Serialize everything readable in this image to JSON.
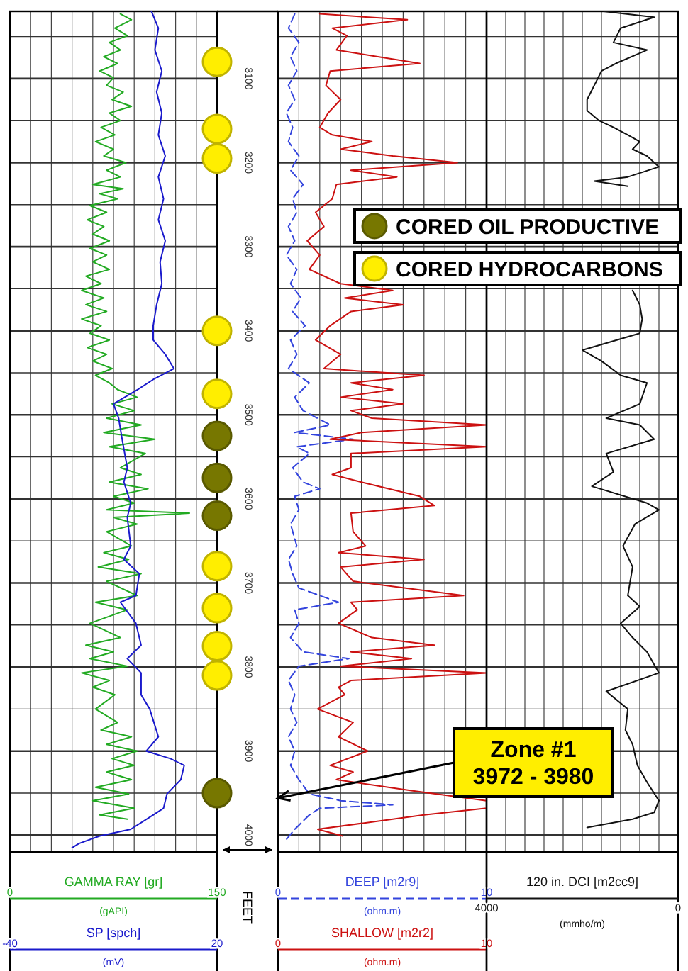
{
  "chart_data": [
    {
      "type": "line",
      "xlabel": "GAMMA RAY [gr]",
      "x2label": "SP [spch]",
      "ylabel": "FEET",
      "xlim": [
        0,
        150
      ],
      "xticks": [
        0,
        {
          "value": 15,
          "label": null
        },
        {
          "value": 30,
          "label": null
        },
        {
          "value": 45,
          "label": null
        },
        {
          "value": 60,
          "label": null
        },
        {
          "value": 75,
          "label": null
        },
        {
          "value": 90,
          "label": null
        },
        {
          "value": 105,
          "label": null
        },
        {
          "value": 120,
          "label": null
        },
        {
          "value": 135,
          "label": null
        },
        150
      ],
      "x2lim": [
        -40,
        20
      ],
      "x2ticks": [
        -40,
        20
      ],
      "ylim": [
        4020,
        3020
      ],
      "yticks": [
        {
          "value": 3050,
          "label": null
        },
        3100,
        {
          "value": 3150,
          "label": null
        },
        3200,
        {
          "value": 3250,
          "label": null
        },
        3300,
        {
          "value": 3350,
          "label": null
        },
        3400,
        {
          "value": 3450,
          "label": null
        },
        3500,
        {
          "value": 3550,
          "label": null
        },
        3600,
        {
          "value": 3650,
          "label": null
        },
        3700,
        {
          "value": 3750,
          "label": null
        },
        3800,
        {
          "value": 3850,
          "label": null
        },
        3900,
        {
          "value": 3950,
          "label": null
        },
        4000
      ],
      "grid": true,
      "legend": "right",
      "annotations": [
        "(gAPI)",
        "(mV)"
      ],
      "series": [
        {
          "type": "line",
          "color": "#22aa22",
          "line_style": "solid",
          "x": [
            80,
            88,
            76,
            85,
            72,
            80,
            68,
            78,
            65,
            75,
            70,
            82,
            74,
            88,
            72,
            80,
            66,
            76,
            62,
            75,
            68,
            84,
            70,
            80,
            60,
            82,
            65,
            78,
            58,
            70,
            56,
            68,
            60,
            72,
            58,
            70,
            60,
            72,
            55,
            66,
            52,
            68,
            55,
            70,
            52,
            66,
            58,
            72,
            56,
            70,
            60,
            74,
            62,
            72,
            78,
            92,
            74,
            90,
            70,
            95,
            68,
            105,
            72,
            98,
            80,
            95,
            72,
            100,
            75,
            90,
            70,
            130,
            75,
            92,
            70,
            88,
            68,
            86,
            64,
            95,
            70,
            92,
            62,
            85,
            58,
            80,
            55,
            75,
            58,
            85,
            52,
            72,
            60,
            76,
            62,
            78,
            66,
            88,
            70,
            92,
            74,
            90,
            70,
            88,
            62,
            86,
            60,
            90,
            65,
            85
          ],
          "values": [
            3023,
            3030,
            3040,
            3049,
            3057,
            3066,
            3074,
            3082,
            3091,
            3099,
            3108,
            3116,
            3125,
            3133,
            3141,
            3150,
            3158,
            3167,
            3175,
            3184,
            3192,
            3200,
            3209,
            3217,
            3226,
            3231,
            3237,
            3243,
            3251,
            3259,
            3268,
            3276,
            3285,
            3293,
            3302,
            3310,
            3318,
            3327,
            3335,
            3344,
            3352,
            3361,
            3369,
            3377,
            3386,
            3394,
            3403,
            3411,
            3420,
            3428,
            3436,
            3445,
            3453,
            3462,
            3470,
            3479,
            3487,
            3495,
            3504,
            3512,
            3521,
            3529,
            3538,
            3546,
            3563,
            3571,
            3580,
            3588,
            3597,
            3605,
            3613,
            3617,
            3622,
            3630,
            3639,
            3656,
            3664,
            3672,
            3681,
            3689,
            3698,
            3715,
            3723,
            3732,
            3748,
            3765,
            3774,
            3782,
            3790,
            3799,
            3807,
            3816,
            3824,
            3833,
            3850,
            3866,
            3875,
            3883,
            3892,
            3900,
            3909,
            3917,
            3925,
            3934,
            3943,
            3951,
            3959,
            3968,
            3976,
            3981
          ]
        },
        {
          "type": "line",
          "color": "#1a1acc",
          "line_style": "solid",
          "axis": "x2",
          "x": [
            1,
            3,
            2,
            4,
            2.5,
            4,
            3,
            5,
            3,
            4.5,
            3,
            5,
            3.5,
            4,
            2.5,
            1.5,
            1.5,
            5,
            7.5,
            1.5,
            -3,
            -10,
            -8.5,
            -7.5,
            -6,
            -7,
            -5,
            -6,
            -5,
            -7,
            -2.5,
            -3.5,
            -8,
            -3.5,
            -2,
            -6,
            -2,
            -2,
            0.5,
            3,
            -0.5,
            6.5,
            10.5,
            9.5,
            5.5,
            4.5,
            1.5,
            -5,
            -14,
            -20,
            -22
          ],
          "values": [
            3020,
            3040,
            3066,
            3091,
            3116,
            3141,
            3167,
            3192,
            3217,
            3243,
            3268,
            3293,
            3318,
            3344,
            3369,
            3394,
            3411,
            3428,
            3445,
            3458,
            3470,
            3487,
            3504,
            3529,
            3563,
            3580,
            3605,
            3622,
            3656,
            3672,
            3689,
            3715,
            3723,
            3748,
            3774,
            3790,
            3807,
            3833,
            3850,
            3883,
            3900,
            3909,
            3917,
            3934,
            3951,
            3968,
            3976,
            3993,
            4001,
            4010,
            4015
          ]
        },
        {
          "type": "scatter",
          "name": "CORED OIL PRODUCTIVE",
          "color": "#777700",
          "marker": "circle",
          "x": [
            150,
            150,
            150,
            150
          ],
          "values": [
            3525,
            3575,
            3620,
            3950
          ]
        },
        {
          "type": "scatter",
          "name": "CORED HYDROCARBONS",
          "color": "#ffee00",
          "marker": "circle",
          "x": [
            150,
            150,
            150,
            150,
            150,
            150,
            150,
            150,
            150
          ],
          "values": [
            3080,
            3160,
            3195,
            3400,
            3475,
            3680,
            3730,
            3775,
            3810
          ]
        }
      ]
    },
    {
      "type": "line",
      "xlabel": "DEEP [m2r9]",
      "x2label": "SHALLOW [m2r2]",
      "xlim": [
        0,
        10
      ],
      "xticks": [
        0,
        {
          "value": 1,
          "label": null
        },
        {
          "value": 2,
          "label": null
        },
        {
          "value": 3,
          "label": null
        },
        {
          "value": 4,
          "label": null
        },
        {
          "value": 5,
          "label": null
        },
        {
          "value": 6,
          "label": null
        },
        {
          "value": 7,
          "label": null
        },
        {
          "value": 8,
          "label": null
        },
        {
          "value": 9,
          "label": null
        },
        10
      ],
      "x2lim": [
        0,
        10
      ],
      "x2ticks": [
        0,
        10
      ],
      "ylim": [
        4020,
        3020
      ],
      "yticks": [
        {
          "value": 3050,
          "label": null
        },
        3100,
        {
          "value": 3150,
          "label": null
        },
        3200,
        {
          "value": 3250,
          "label": null
        },
        3300,
        {
          "value": 3350,
          "label": null
        },
        3400,
        {
          "value": 3450,
          "label": null
        },
        3500,
        {
          "value": 3550,
          "label": null
        },
        3600,
        {
          "value": 3650,
          "label": null
        },
        3700,
        {
          "value": 3750,
          "label": null
        },
        3800,
        {
          "value": 3850,
          "label": null
        },
        3900,
        {
          "value": 3950,
          "label": null
        },
        4000
      ],
      "grid": true,
      "tick_labels": "x",
      "annotations": [
        "(ohm.m)",
        "(ohm.m)",
        "Zone #1\n3972 - 3980"
      ],
      "series": [
        {
          "type": "line",
          "color": "#3344dd",
          "line_style": "dashed",
          "x": [
            0.8,
            0.5,
            1.0,
            0.6,
            0.9,
            0.5,
            0.8,
            0.4,
            0.7,
            0.5,
            1.0,
            0.6,
            1.2,
            0.7,
            0.9,
            0.5,
            0.8,
            0.4,
            0.9,
            0.6,
            1.1,
            0.7,
            1.3,
            0.6,
            0.9,
            0.5,
            1.5,
            0.8,
            1.2,
            2.5,
            0.8,
            3.6,
            0.9,
            1.5,
            0.7,
            1.2,
            2.0,
            0.8,
            1.0,
            0.6,
            0.9,
            0.5,
            0.7,
            1.0,
            2.9,
            0.8,
            1.0,
            0.6,
            1.2,
            3.4,
            1.0,
            0.5,
            0.8,
            0.6,
            0.9,
            0.5,
            0.8,
            0.6,
            1.0,
            1.5,
            3.0,
            5.5,
            2.0,
            1.5,
            0.8,
            0.4
          ],
          "values": [
            3023,
            3040,
            3057,
            3074,
            3091,
            3108,
            3125,
            3141,
            3158,
            3175,
            3192,
            3209,
            3226,
            3243,
            3259,
            3276,
            3293,
            3310,
            3327,
            3344,
            3361,
            3377,
            3394,
            3411,
            3428,
            3445,
            3462,
            3479,
            3495,
            3512,
            3521,
            3529,
            3538,
            3546,
            3563,
            3580,
            3588,
            3597,
            3613,
            3630,
            3656,
            3672,
            3689,
            3706,
            3723,
            3732,
            3748,
            3765,
            3782,
            3790,
            3799,
            3816,
            3833,
            3850,
            3866,
            3883,
            3900,
            3917,
            3934,
            3951,
            3959,
            3964,
            3968,
            3976,
            3993,
            4005
          ]
        },
        {
          "type": "line",
          "color": "#cc1111",
          "line_style": "solid",
          "axis": "x2",
          "x": [
            2,
            6.2,
            2.6,
            3.3,
            2.8,
            6.8,
            2.5,
            2.3,
            3.0,
            2.4,
            2.0,
            2.6,
            4.5,
            3.0,
            5.5,
            8.6,
            3.5,
            5.7,
            2.8,
            2.6,
            1.8,
            2.2,
            1.4,
            2.0,
            1.5,
            3.0,
            5.5,
            3.2,
            6.0,
            3.5,
            2.5,
            1.8,
            3.0,
            2.2,
            7.0,
            3.5,
            5.5,
            3.0,
            6.0,
            3.5,
            4.5,
            10,
            4.0,
            2.5,
            10,
            3.5,
            3.5,
            2.6,
            4.0,
            6.8,
            7.5,
            3.5,
            3.6,
            4.2,
            2.9,
            7.0,
            3.0,
            3.6,
            8.9,
            3.5,
            3.8,
            2.9,
            4.5,
            7.5,
            3.5,
            6.4,
            3.0,
            10,
            3.5,
            2.9,
            3.2,
            1.9,
            3.6,
            2.9,
            4.3,
            2.5,
            3.6,
            2.8,
            6.4,
            10,
            10,
            7.0,
            1.9,
            3.1
          ],
          "values": [
            3023,
            3030,
            3040,
            3049,
            3066,
            3082,
            3091,
            3108,
            3125,
            3141,
            3158,
            3167,
            3175,
            3184,
            3192,
            3200,
            3209,
            3217,
            3226,
            3243,
            3259,
            3276,
            3293,
            3310,
            3327,
            3344,
            3352,
            3361,
            3369,
            3377,
            3394,
            3411,
            3428,
            3445,
            3453,
            3462,
            3470,
            3479,
            3487,
            3495,
            3504,
            3512,
            3521,
            3529,
            3538,
            3546,
            3563,
            3571,
            3580,
            3597,
            3608,
            3617,
            3639,
            3656,
            3664,
            3672,
            3681,
            3698,
            3715,
            3723,
            3732,
            3748,
            3765,
            3774,
            3782,
            3790,
            3799,
            3807,
            3816,
            3824,
            3833,
            3850,
            3866,
            3883,
            3900,
            3917,
            3925,
            3934,
            3947,
            3959,
            3968,
            3976,
            3993,
            4001
          ]
        }
      ]
    },
    {
      "type": "line",
      "xlabel": "120 in. DCI [m2cc9]",
      "xlim": [
        4000,
        0
      ],
      "xticks": [
        4000,
        {
          "value": 3600,
          "label": null
        },
        {
          "value": 3200,
          "label": null
        },
        {
          "value": 2800,
          "label": null
        },
        {
          "value": 2400,
          "label": null
        },
        {
          "value": 2000,
          "label": null
        },
        {
          "value": 1600,
          "label": null
        },
        {
          "value": 1200,
          "label": null
        },
        {
          "value": 800,
          "label": null
        },
        {
          "value": 400,
          "label": null
        },
        0
      ],
      "ylim": [
        4020,
        3020
      ],
      "yticks": [
        {
          "value": 3050,
          "label": null
        },
        3100,
        {
          "value": 3150,
          "label": null
        },
        3200,
        {
          "value": 3250,
          "label": null
        },
        3300,
        {
          "value": 3350,
          "label": null
        },
        3400,
        {
          "value": 3450,
          "label": null
        },
        3500,
        {
          "value": 3550,
          "label": null
        },
        3600,
        {
          "value": 3650,
          "label": null
        },
        3700,
        {
          "value": 3750,
          "label": null
        },
        3800,
        {
          "value": 3850,
          "label": null
        },
        3900,
        {
          "value": 3950,
          "label": null
        },
        4000
      ],
      "grid": true,
      "tick_labels": "x",
      "annotations": [
        "(mmho/m)"
      ],
      "series": [
        {
          "type": "line",
          "color": "#111111",
          "line_style": "solid",
          "x": [
            1550,
            500,
            1200,
            1350,
            650,
            1300,
            1600,
            1750,
            1900,
            1900,
            1650,
            1350,
            1050,
            800,
            950,
            650,
            400,
            1050,
            1750,
            1050
          ],
          "values": [
            3020,
            3027,
            3040,
            3057,
            3066,
            3082,
            3091,
            3108,
            3125,
            3138,
            3150,
            3158,
            3167,
            3175,
            3184,
            3192,
            3205,
            3217,
            3222,
            3228
          ]
        },
        {
          "type": "line",
          "color": "#111111",
          "line_style": "solid",
          "x": [
            950,
            800,
            750,
            800,
            2000,
            1600,
            1200,
            650,
            800,
            1500,
            800,
            500,
            1500,
            1350,
            1800,
            650,
            400,
            900,
            1150,
            950,
            1050,
            800,
            1200,
            950,
            650,
            400,
            1500,
            1050,
            1100,
            950,
            850,
            650,
            400,
            500,
            950,
            1900
          ],
          "values": [
            3352,
            3369,
            3386,
            3403,
            3423,
            3436,
            3453,
            3462,
            3487,
            3504,
            3512,
            3529,
            3546,
            3568,
            3585,
            3605,
            3613,
            3630,
            3656,
            3681,
            3715,
            3728,
            3748,
            3765,
            3782,
            3807,
            3829,
            3850,
            3875,
            3892,
            3917,
            3937,
            3959,
            3973,
            3981,
            3991
          ]
        }
      ]
    }
  ]
}
